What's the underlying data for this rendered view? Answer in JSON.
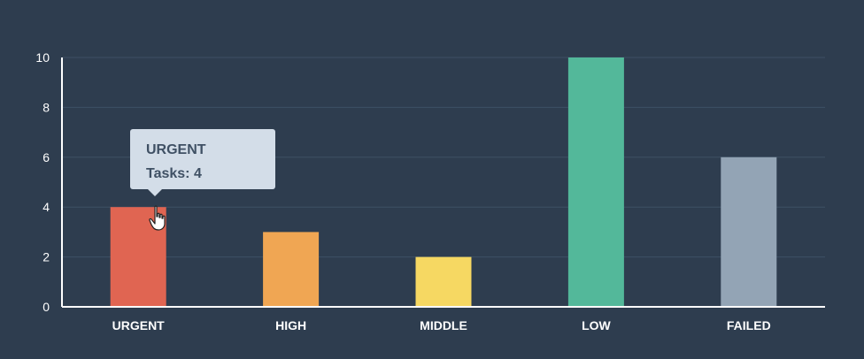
{
  "chart_data": {
    "type": "bar",
    "categories": [
      "URGENT",
      "HIGH",
      "MIDDLE",
      "LOW",
      "FAILED"
    ],
    "values": [
      4,
      3,
      2,
      10,
      6
    ],
    "colors": [
      "#e06552",
      "#f0a653",
      "#f6d862",
      "#53b89a",
      "#93a4b5"
    ],
    "ylim": [
      0,
      10
    ],
    "yticks": [
      0,
      2,
      4,
      6,
      8,
      10
    ],
    "grid": true
  },
  "tooltip": {
    "title": "URGENT",
    "line": "Tasks: 4"
  },
  "cursor_icon": "hand-pointer-icon"
}
